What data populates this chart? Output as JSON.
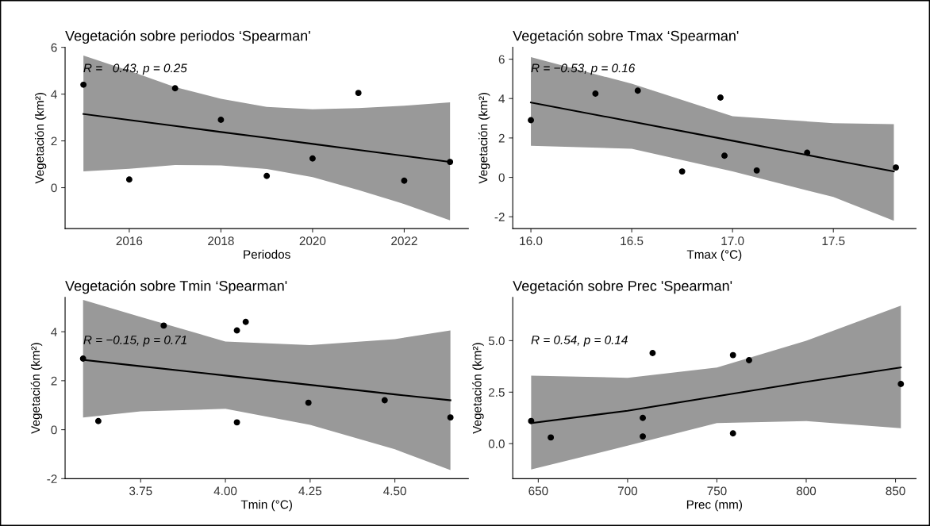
{
  "chart_data": [
    {
      "type": "scatter",
      "title": "Vegetación sobre periodos ‘Spearman'",
      "xlabel": "Periodos",
      "ylabel": "Vegetación (km²)",
      "xlim": [
        2014.6,
        2023.4
      ],
      "xticks": [
        2016,
        2018,
        2020,
        2022
      ],
      "ylim": [
        -1.75,
        6
      ],
      "yticks": [
        0,
        2,
        4,
        6
      ],
      "grid": false,
      "legend": false,
      "annotations": [
        "R =   0.43, p = 0.25"
      ],
      "series": [
        {
          "marker": "circle",
          "color": "#000000",
          "x": [
            2015,
            2016,
            2017,
            2018,
            2019,
            2020,
            2021,
            2022,
            2023
          ],
          "values": [
            4.4,
            0.35,
            4.25,
            2.9,
            0.5,
            1.25,
            4.05,
            0.3,
            1.1
          ]
        },
        {
          "type": "line",
          "marker": "none",
          "color": "#000000",
          "x": [
            2015,
            2016,
            2017,
            2018,
            2019,
            2020,
            2021,
            2022,
            2023
          ],
          "values": [
            3.15,
            2.89,
            2.64,
            2.38,
            2.13,
            1.87,
            1.61,
            1.36,
            1.1
          ],
          "lower": [
            0.7,
            0.81,
            0.97,
            0.95,
            0.8,
            0.45,
            -0.1,
            -0.7,
            -1.4
          ],
          "upper": [
            5.65,
            5.0,
            4.3,
            3.8,
            3.45,
            3.35,
            3.4,
            3.5,
            3.65
          ]
        }
      ]
    },
    {
      "type": "scatter",
      "title": "Vegetación sobre Tmax ‘Spearman'",
      "xlabel": "Tmax (°C)",
      "ylabel": "Vegetación (km²)",
      "xlim": [
        15.91,
        17.91
      ],
      "xticks": [
        {
          "value": 16,
          "label": "16.0"
        },
        16.5,
        {
          "value": 17,
          "label": "17.0"
        },
        17.5
      ],
      "ylim": [
        -2.6,
        6.6
      ],
      "yticks": [
        -2,
        0,
        2,
        4,
        6
      ],
      "grid": false,
      "legend": false,
      "annotations": [
        "R = −0.53, p = 0.16"
      ],
      "series": [
        {
          "marker": "circle",
          "color": "#000000",
          "x": [
            16.0,
            16.32,
            16.53,
            16.75,
            16.94,
            16.96,
            17.12,
            17.37,
            17.81
          ],
          "values": [
            2.9,
            4.25,
            4.4,
            0.3,
            4.05,
            1.1,
            0.35,
            1.25,
            0.5
          ]
        },
        {
          "type": "line",
          "marker": "none",
          "color": "#000000",
          "x": [
            16.0,
            16.5,
            17.0,
            17.5,
            17.8
          ],
          "values": [
            3.8,
            2.83,
            1.86,
            0.88,
            0.3
          ],
          "lower": [
            1.6,
            1.45,
            0.3,
            -1.0,
            -2.2
          ],
          "upper": [
            6.1,
            4.75,
            3.1,
            2.75,
            2.7
          ]
        }
      ]
    },
    {
      "type": "scatter",
      "title": "Vegetación sobre Tmin ‘Spearman'",
      "xlabel": "Tmin (°C)",
      "ylabel": "Vegetación (km²)",
      "xlim": [
        3.527,
        4.717
      ],
      "xticks": [
        3.75,
        {
          "value": 4,
          "label": "4.00"
        },
        4.25,
        {
          "value": 4.5,
          "label": "4.50"
        }
      ],
      "ylim": [
        -2.0,
        5.4
      ],
      "yticks": [
        -2,
        0,
        2,
        4
      ],
      "grid": false,
      "legend": false,
      "annotations": [
        "R = −0.15, p = 0.71"
      ],
      "series": [
        {
          "marker": "circle",
          "color": "#000000",
          "x": [
            3.58,
            3.625,
            3.818,
            4.034,
            4.034,
            4.06,
            4.245,
            4.47,
            4.664
          ],
          "values": [
            2.9,
            0.35,
            4.25,
            4.05,
            0.3,
            4.4,
            1.1,
            1.2,
            0.5
          ]
        },
        {
          "type": "line",
          "marker": "none",
          "color": "#000000",
          "x": [
            3.58,
            3.75,
            4.0,
            4.25,
            4.5,
            4.664
          ],
          "values": [
            2.85,
            2.59,
            2.21,
            1.83,
            1.44,
            1.2
          ],
          "lower": [
            0.5,
            0.75,
            0.85,
            0.2,
            -0.8,
            -1.65
          ],
          "upper": [
            5.3,
            4.6,
            3.6,
            3.45,
            3.7,
            4.05
          ]
        }
      ]
    },
    {
      "type": "scatter",
      "title": "Vegetación sobre Prec 'Spearman'",
      "xlabel": "Prec (mm)",
      "ylabel": "Vegetación (km²)",
      "xlim": [
        635.7,
        861.5
      ],
      "xticks": [
        650,
        700,
        750,
        800,
        850
      ],
      "ylim": [
        -1.7,
        7.1
      ],
      "yticks": [
        {
          "value": 0,
          "label": "0.0"
        },
        2.5,
        {
          "value": 5,
          "label": "5.0"
        }
      ],
      "grid": false,
      "legend": false,
      "annotations": [
        "R = 0.54, p = 0.14"
      ],
      "series": [
        {
          "marker": "circle",
          "color": "#000000",
          "x": [
            646,
            657,
            708.5,
            708.5,
            714,
            759,
            759,
            768,
            853
          ],
          "values": [
            1.1,
            0.3,
            1.25,
            0.35,
            4.4,
            4.3,
            0.5,
            4.05,
            2.9
          ]
        },
        {
          "type": "line",
          "marker": "none",
          "color": "#000000",
          "x": [
            646,
            700,
            750,
            800,
            853
          ],
          "values": [
            1.0,
            1.6,
            2.3,
            3.0,
            3.7
          ],
          "lower": [
            -1.25,
            -0.1,
            1.0,
            1.1,
            0.75
          ],
          "upper": [
            3.3,
            3.2,
            3.7,
            5.0,
            6.7
          ]
        }
      ]
    }
  ]
}
